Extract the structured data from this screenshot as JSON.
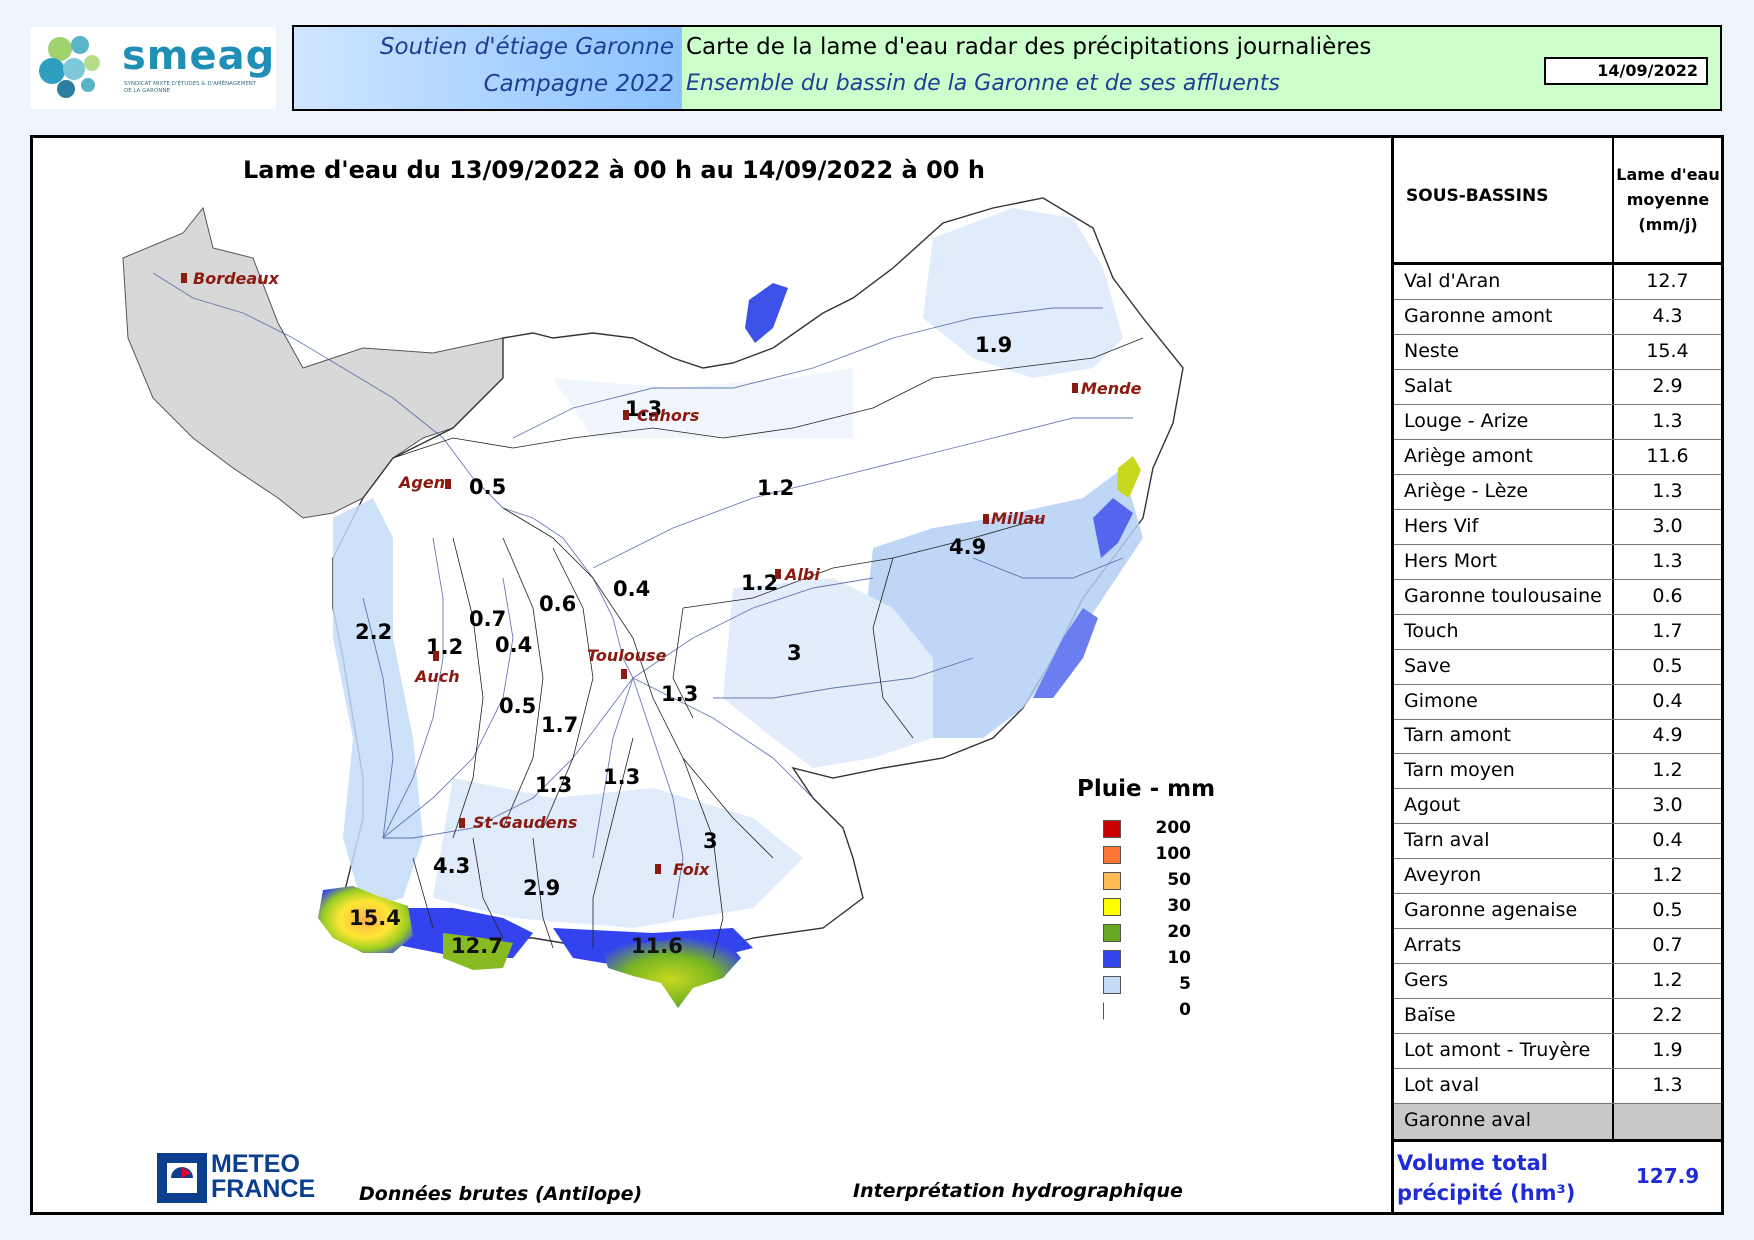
{
  "header": {
    "logo_name": "smeag",
    "logo_subtitle": "SYNDICAT MIXTE D'ÉTUDES & D'AMÉNAGEMENT DE LA GARONNE",
    "soutien": "Soutien d'étiage Garonne",
    "campagne": "Campagne 2022",
    "carte_title": "Carte de la lame d'eau radar des précipitations journalières",
    "ensemble": "Ensemble du bassin de la Garonne et de ses affluents",
    "date": "14/09/2022"
  },
  "map": {
    "title": "Lame d'eau du 13/09/2022 à 00 h au 14/09/2022 à 00 h",
    "cities": [
      "Bordeaux",
      "Cahors",
      "Mende",
      "Agen",
      "Millau",
      "Albi",
      "Toulouse",
      "Auch",
      "St-Gaudens",
      "Foix"
    ],
    "basin_values": [
      "1.9",
      "1.3",
      "0.5",
      "1.2",
      "4.9",
      "0.4",
      "1.2",
      "0.6",
      "2.2",
      "0.7",
      "1.2",
      "0.4",
      "3",
      "1.3",
      "0.5",
      "1.7",
      "1.3",
      "1.3",
      "3",
      "4.3",
      "2.9",
      "15.4",
      "12.7",
      "11.6"
    ]
  },
  "legend": {
    "title": "Pluie - mm",
    "items": [
      {
        "label": "200",
        "color": "#cc0000"
      },
      {
        "label": "100",
        "color": "#ff7733"
      },
      {
        "label": "50",
        "color": "#ffbb55"
      },
      {
        "label": "30",
        "color": "#ffff00"
      },
      {
        "label": "20",
        "color": "#66aa22"
      },
      {
        "label": "10",
        "color": "#3344ee"
      },
      {
        "label": "5",
        "color": "#c4dcf8"
      },
      {
        "label": "0",
        "color": "#ffffff"
      }
    ]
  },
  "footer": {
    "meteo_line1": "METEO",
    "meteo_line2": "FRANCE",
    "donnees": "Données brutes (Antilope)",
    "interp": "Interprétation hydrographique"
  },
  "table": {
    "col_name": "SOUS-BASSINS",
    "col_val_l1": "Lame d'eau",
    "col_val_l2": "moyenne",
    "col_val_l3": "(mm/j)",
    "rows": [
      {
        "name": "Val d'Aran",
        "value": "12.7"
      },
      {
        "name": "Garonne amont",
        "value": "4.3"
      },
      {
        "name": "Neste",
        "value": "15.4"
      },
      {
        "name": "Salat",
        "value": "2.9"
      },
      {
        "name": "Louge - Arize",
        "value": "1.3"
      },
      {
        "name": "Ariège amont",
        "value": "11.6"
      },
      {
        "name": "Ariège - Lèze",
        "value": "1.3"
      },
      {
        "name": "Hers Vif",
        "value": "3.0"
      },
      {
        "name": "Hers Mort",
        "value": "1.3"
      },
      {
        "name": "Garonne toulousaine",
        "value": "0.6"
      },
      {
        "name": "Touch",
        "value": "1.7"
      },
      {
        "name": "Save",
        "value": "0.5"
      },
      {
        "name": "Gimone",
        "value": "0.4"
      },
      {
        "name": "Tarn amont",
        "value": "4.9"
      },
      {
        "name": "Tarn moyen",
        "value": "1.2"
      },
      {
        "name": "Agout",
        "value": "3.0"
      },
      {
        "name": "Tarn aval",
        "value": "0.4"
      },
      {
        "name": "Aveyron",
        "value": "1.2"
      },
      {
        "name": "Garonne agenaise",
        "value": "0.5"
      },
      {
        "name": "Arrats",
        "value": "0.7"
      },
      {
        "name": "Gers",
        "value": "1.2"
      },
      {
        "name": "Baïse",
        "value": "2.2"
      },
      {
        "name": "Lot amont - Truyère",
        "value": "1.9"
      },
      {
        "name": "Lot aval",
        "value": "1.3"
      },
      {
        "name": "Garonne aval",
        "value": ""
      }
    ],
    "volume_label_l1": "Volume total",
    "volume_label_l2": "précipité (hm³)",
    "volume_value": "127.9"
  }
}
